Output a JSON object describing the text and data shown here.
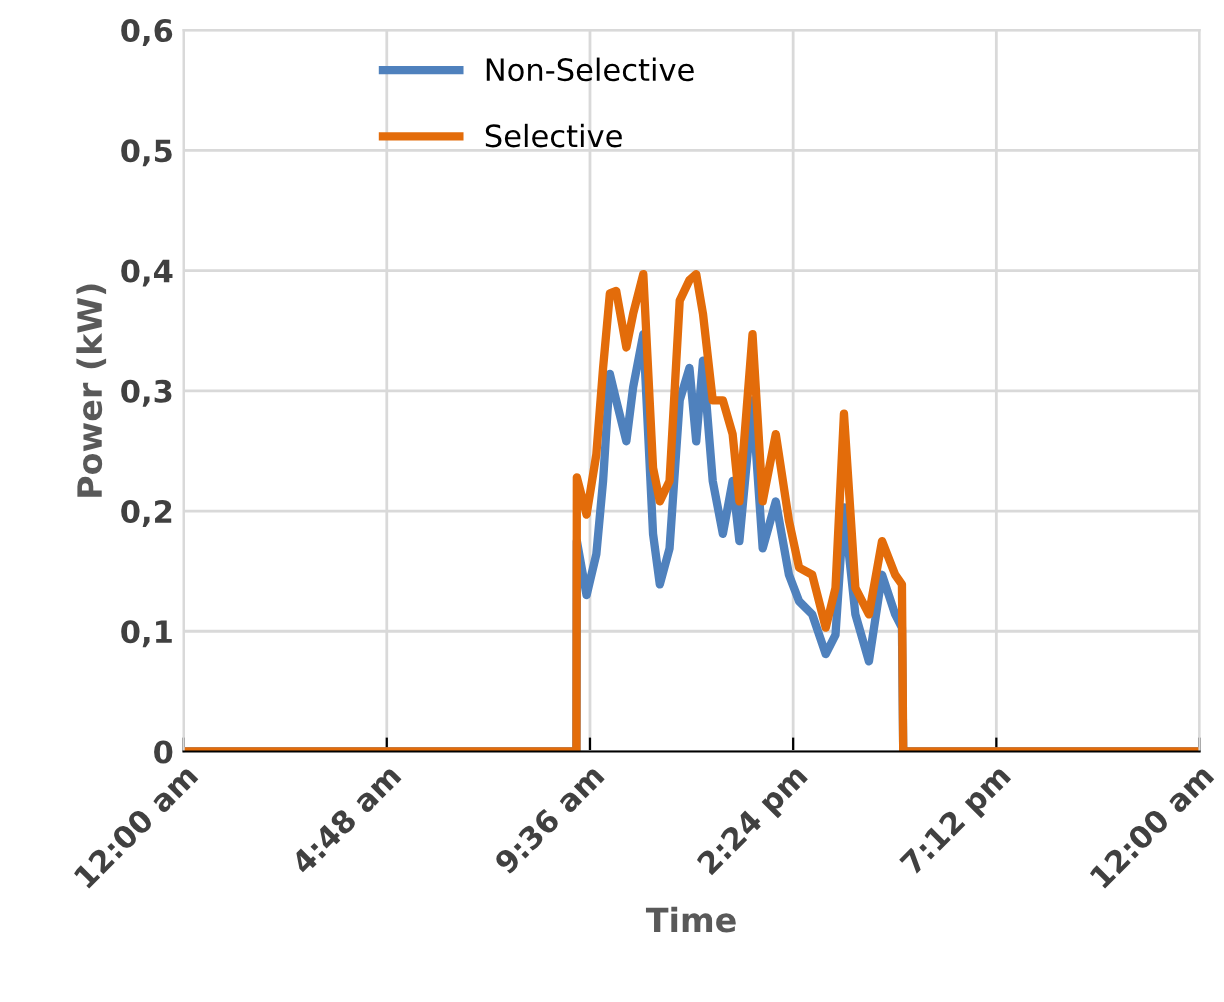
{
  "chart_data": {
    "type": "line",
    "xlabel": "Time",
    "ylabel": "Power (kW)",
    "xlim": [
      0,
      24
    ],
    "xticks": [
      {
        "value": 0,
        "label": "12:00 am"
      },
      {
        "value": 4.8,
        "label": "4:48 am"
      },
      {
        "value": 9.6,
        "label": "9:36 am"
      },
      {
        "value": 14.4,
        "label": "2:24 pm"
      },
      {
        "value": 19.2,
        "label": "7:12 pm"
      },
      {
        "value": 24,
        "label": "12:00 am"
      }
    ],
    "ylim": [
      0,
      0.6
    ],
    "yticks": [
      {
        "value": 0,
        "label": "0"
      },
      {
        "value": 0.1,
        "label": "0,1"
      },
      {
        "value": 0.2,
        "label": "0,2"
      },
      {
        "value": 0.3,
        "label": "0,3"
      },
      {
        "value": 0.4,
        "label": "0,4"
      },
      {
        "value": 0.5,
        "label": "0,5"
      },
      {
        "value": 0.6,
        "label": "0,6"
      }
    ],
    "grid": true,
    "legend": "top",
    "marker": "none",
    "line_style": "solid",
    "series": [
      {
        "name": "Non-Selective",
        "color": "#4f81bd",
        "x": [
          0,
          9.28,
          9.29,
          9.52,
          9.75,
          9.91,
          10.07,
          10.22,
          10.46,
          10.62,
          10.86,
          11.09,
          11.25,
          11.48,
          11.72,
          11.95,
          12.11,
          12.27,
          12.5,
          12.74,
          12.97,
          13.13,
          13.44,
          13.68,
          13.99,
          14.3,
          14.54,
          14.85,
          15.17,
          15.4,
          15.6,
          15.87,
          16.19,
          16.5,
          16.81,
          16.97,
          17.0,
          24
        ],
        "values": [
          0,
          0,
          0.175,
          0.13,
          0.164,
          0.225,
          0.314,
          0.292,
          0.258,
          0.303,
          0.347,
          0.181,
          0.139,
          0.169,
          0.292,
          0.319,
          0.258,
          0.325,
          0.225,
          0.181,
          0.225,
          0.175,
          0.292,
          0.169,
          0.208,
          0.147,
          0.125,
          0.114,
          0.081,
          0.097,
          0.203,
          0.114,
          0.075,
          0.147,
          0.114,
          0.103,
          0,
          0
        ]
      },
      {
        "name": "Selective",
        "color": "#e36c0a",
        "x": [
          0,
          9.28,
          9.29,
          9.52,
          9.75,
          9.91,
          10.07,
          10.22,
          10.46,
          10.62,
          10.86,
          11.09,
          11.25,
          11.48,
          11.72,
          11.95,
          12.11,
          12.27,
          12.5,
          12.74,
          12.97,
          13.13,
          13.44,
          13.68,
          13.99,
          14.3,
          14.54,
          14.85,
          15.17,
          15.4,
          15.6,
          15.87,
          16.19,
          16.5,
          16.81,
          16.97,
          17.0,
          24
        ],
        "values": [
          0,
          0,
          0.228,
          0.197,
          0.247,
          0.319,
          0.381,
          0.383,
          0.336,
          0.364,
          0.397,
          0.236,
          0.208,
          0.225,
          0.375,
          0.392,
          0.397,
          0.364,
          0.292,
          0.292,
          0.264,
          0.208,
          0.347,
          0.208,
          0.264,
          0.192,
          0.153,
          0.147,
          0.103,
          0.136,
          0.281,
          0.136,
          0.114,
          0.175,
          0.147,
          0.139,
          0,
          0
        ]
      }
    ]
  }
}
